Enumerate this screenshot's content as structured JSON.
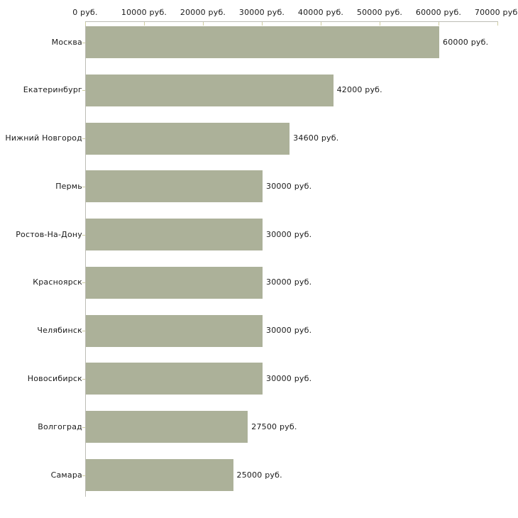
{
  "chart_data": {
    "type": "bar",
    "orientation": "horizontal",
    "title": "",
    "xlabel": "",
    "ylabel": "",
    "unit": "руб.",
    "categories": [
      "Москва",
      "Екатеринбург",
      "Нижний Новгород",
      "Пермь",
      "Ростов-На-Дону",
      "Красноярск",
      "Челябинск",
      "Новосибирск",
      "Волгоград",
      "Самара"
    ],
    "values": [
      60000,
      42000,
      34600,
      30000,
      30000,
      30000,
      30000,
      30000,
      27500,
      25000
    ],
    "value_labels": [
      "60000 руб.",
      "42000 руб.",
      "34600 руб.",
      "30000 руб.",
      "30000 руб.",
      "30000 руб.",
      "30000 руб.",
      "30000 руб.",
      "27500 руб.",
      "25000 руб."
    ],
    "x_axis": {
      "min": 0,
      "max": 70000,
      "tick_step": 10000,
      "tick_labels": [
        "0 руб.",
        "10000 руб.",
        "20000 руб.",
        "30000 руб.",
        "40000 руб.",
        "50000 руб.",
        "60000 руб.",
        "70000 руб."
      ],
      "position": "top"
    },
    "grid": false,
    "legend": false,
    "colors": {
      "bar": "#acb199",
      "axis_line": "#bdbdb5",
      "tick": "#cfcda0",
      "text": "#1a1a1a",
      "background": "#ffffff"
    }
  }
}
